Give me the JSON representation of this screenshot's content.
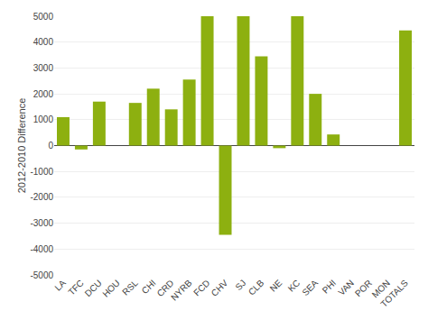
{
  "chart_data": {
    "type": "bar",
    "categories": [
      "LA",
      "TFC",
      "DCU",
      "HOU",
      "RSL",
      "CHI",
      "CRD",
      "NYRB",
      "FCD",
      "CHV",
      "SJ",
      "CLB",
      "NE",
      "KC",
      "SEA",
      "PHI",
      "VAN",
      "POR",
      "MON",
      "TOTALS"
    ],
    "values": [
      1100,
      -150,
      1700,
      0,
      1650,
      2200,
      1400,
      2550,
      5000,
      -3450,
      5000,
      3450,
      -100,
      5000,
      2000,
      430,
      0,
      0,
      0,
      4450
    ],
    "color": "#8db010",
    "ylabel": "2012-2010 Difference",
    "ylim": [
      -5000,
      5000
    ],
    "yticks": [
      -5000,
      -4000,
      -3000,
      -2000,
      -1000,
      0,
      1000,
      2000,
      3000,
      4000,
      5000
    ],
    "grid": true
  }
}
